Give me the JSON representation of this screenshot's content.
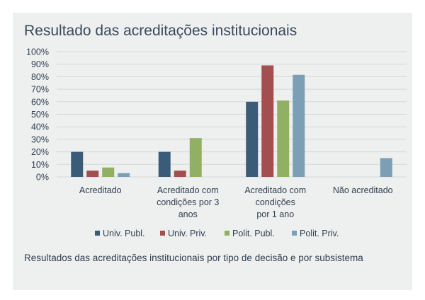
{
  "title": "Resultado das acreditações institucionais",
  "caption": "Resultados das acreditações institucionais por tipo de decisão e por subsistema",
  "colors": {
    "background": "#eef0f0",
    "grid": "#d3d7d7",
    "text": "#2f3e4e"
  },
  "chart_data": {
    "type": "bar",
    "categories": [
      [
        "Acreditado"
      ],
      [
        "Acreditado com",
        "condições por 3",
        "anos"
      ],
      [
        "Acreditado com",
        "condições",
        "por 1 ano"
      ],
      [
        "Não acreditado"
      ]
    ],
    "series": [
      {
        "name": "Univ. Publ.",
        "color": "#3b5c79",
        "values": [
          20,
          20,
          60,
          0
        ]
      },
      {
        "name": "Univ. Priv.",
        "color": "#a34f4f",
        "values": [
          5,
          5,
          89,
          0
        ]
      },
      {
        "name": "Polit. Publ.",
        "color": "#91b063",
        "values": [
          7.5,
          31,
          61,
          0
        ]
      },
      {
        "name": "Polit. Priv.",
        "color": "#7b9fb5",
        "values": [
          3,
          0,
          81.5,
          15
        ]
      }
    ],
    "y_ticks": [
      "0%",
      "10%",
      "20%",
      "30%",
      "40%",
      "50%",
      "60%",
      "70%",
      "80%",
      "90%",
      "100%"
    ],
    "ylim": [
      0,
      100
    ],
    "grid": true,
    "legend_position": "bottom"
  }
}
